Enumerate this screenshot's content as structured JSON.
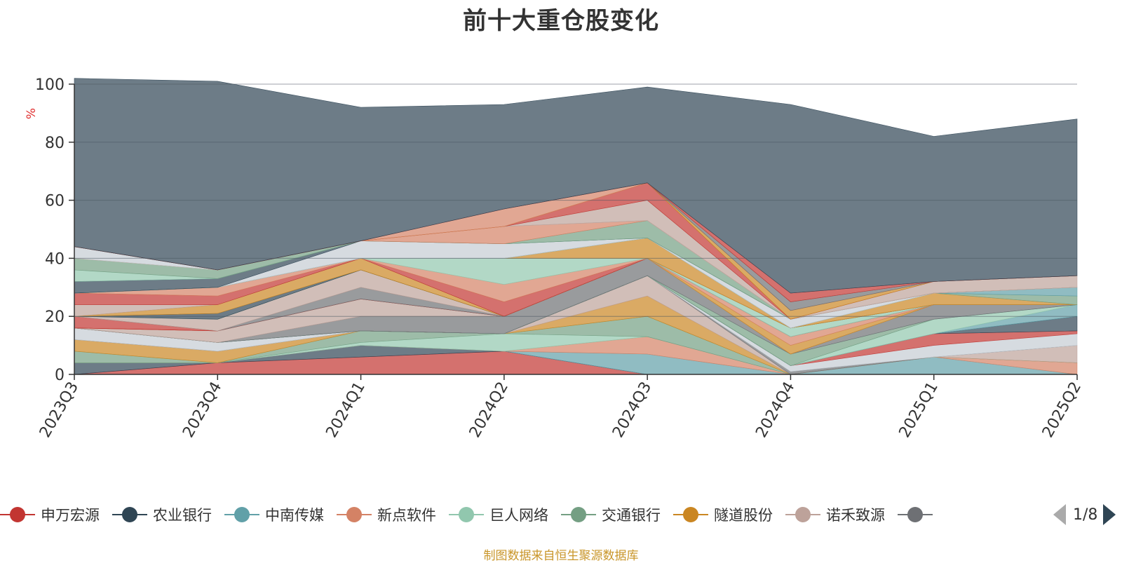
{
  "title": "前十大重仓股变化",
  "source_note": "制图数据来自恒生聚源数据库",
  "legend_page": "1/8",
  "chart_data": {
    "type": "area",
    "stacked": true,
    "title": "前十大重仓股变化",
    "ylabel": "%",
    "ylim": [
      0,
      100
    ],
    "yticks": [
      0,
      20,
      40,
      60,
      80,
      100
    ],
    "grid": true,
    "legend_position": "bottom",
    "x": [
      "2023Q3",
      "2023Q4",
      "2024Q1",
      "2024Q2",
      "2024Q3",
      "2024Q4",
      "2025Q1",
      "2025Q2"
    ],
    "series": [
      {
        "name": "申万宏源",
        "color": "#c23531",
        "values": [
          0,
          4,
          6,
          8,
          0,
          0,
          0,
          0
        ]
      },
      {
        "name": "农业银行",
        "color": "#2f4554",
        "values": [
          4,
          0,
          4,
          0,
          0,
          0,
          0,
          0
        ]
      },
      {
        "name": "中南传媒",
        "color": "#61a0a8",
        "values": [
          0,
          0,
          0,
          0,
          7,
          0,
          6,
          0
        ]
      },
      {
        "name": "新点软件",
        "color": "#d48265",
        "values": [
          0,
          0,
          0,
          0,
          6,
          0,
          0,
          4
        ]
      },
      {
        "name": "巨人网络",
        "color": "#91c7ae",
        "values": [
          0,
          0,
          1,
          6,
          0,
          0,
          0,
          0
        ]
      },
      {
        "name": "交通银行",
        "color": "#749f83",
        "values": [
          4,
          0,
          4,
          0,
          7,
          0,
          0,
          0
        ]
      },
      {
        "name": "隧道股份",
        "color": "#ca8622",
        "values": [
          4,
          4,
          0,
          0,
          7,
          0,
          0,
          0
        ]
      },
      {
        "name": "诺禾致源",
        "color": "#bda29a",
        "values": [
          0,
          0,
          0,
          0,
          7,
          0,
          0,
          6
        ]
      },
      {
        "name": "",
        "color": "#6e7074",
        "values": [
          0,
          0,
          0,
          0,
          0,
          1,
          0,
          0
        ]
      },
      {
        "name": "",
        "color": "#c4ccd3",
        "values": [
          4,
          3,
          0,
          0,
          0,
          2,
          4,
          4
        ]
      },
      {
        "name": "",
        "color": "#c23531",
        "values": [
          0,
          0,
          0,
          0,
          0,
          0,
          4,
          1
        ]
      },
      {
        "name": "",
        "color": "#2f4554",
        "values": [
          0,
          0,
          0,
          0,
          0,
          0,
          0,
          5
        ]
      },
      {
        "name": "",
        "color": "#61a0a8",
        "values": [
          0,
          0,
          0,
          0,
          0,
          0,
          0,
          4
        ]
      },
      {
        "name": "",
        "color": "#91c7ae",
        "values": [
          0,
          0,
          0,
          0,
          0,
          0,
          5,
          0
        ]
      },
      {
        "name": "",
        "color": "#749f83",
        "values": [
          0,
          0,
          0,
          0,
          0,
          4,
          0,
          0
        ]
      },
      {
        "name": "",
        "color": "#6e7074",
        "values": [
          0,
          0,
          5,
          6,
          6,
          0,
          5,
          0
        ]
      },
      {
        "name": "",
        "color": "#bda29a",
        "values": [
          0,
          4,
          6,
          0,
          0,
          0,
          0,
          0
        ]
      },
      {
        "name": "",
        "color": "#ca8622",
        "values": [
          0,
          0,
          0,
          0,
          0,
          3,
          0,
          0
        ]
      },
      {
        "name": "",
        "color": "#d48265",
        "values": [
          0,
          0,
          0,
          0,
          0,
          3,
          0,
          0
        ]
      },
      {
        "name": "",
        "color": "#c4ccd3",
        "values": [
          0,
          0,
          0,
          0,
          0,
          0,
          0,
          0
        ]
      },
      {
        "name": "",
        "color": "#c23531",
        "values": [
          0,
          0,
          0,
          0,
          0,
          0,
          0,
          0
        ]
      },
      {
        "name": "",
        "color": "#c23531",
        "values": [
          4,
          0,
          0,
          0,
          0,
          0,
          0,
          0
        ]
      },
      {
        "name": "",
        "color": "#6e7074",
        "values": [
          0,
          0,
          4,
          0,
          0,
          0,
          0,
          0
        ]
      },
      {
        "name": "",
        "color": "#bda29a",
        "values": [
          0,
          4,
          6,
          0,
          0,
          0,
          0,
          0
        ]
      },
      {
        "name": "",
        "color": "#91c7ae",
        "values": [
          0,
          0,
          0,
          0,
          0,
          3,
          0,
          0
        ]
      },
      {
        "name": "",
        "color": "#2f4554",
        "values": [
          0,
          2,
          0,
          0,
          0,
          0,
          0,
          0
        ]
      },
      {
        "name": "",
        "color": "#ca8622",
        "values": [
          0,
          3,
          4,
          0,
          0,
          0,
          0,
          0
        ]
      },
      {
        "name": "",
        "color": "#bda29a",
        "values": [
          4,
          0,
          0,
          0,
          0,
          0,
          0,
          0
        ]
      },
      {
        "name": "",
        "color": "#c23531",
        "values": [
          4,
          3,
          0,
          5,
          0,
          0,
          0,
          0
        ]
      },
      {
        "name": "",
        "color": "#d48265",
        "values": [
          0,
          3,
          0,
          6,
          0,
          0,
          0,
          0
        ]
      },
      {
        "name": "",
        "color": "#91c7ae",
        "values": [
          0,
          0,
          0,
          9,
          0,
          0,
          0,
          0
        ]
      },
      {
        "name": "",
        "color": "#ca8622",
        "values": [
          0,
          0,
          0,
          0,
          7,
          0,
          4,
          0
        ]
      },
      {
        "name": "",
        "color": "#749f83",
        "values": [
          0,
          0,
          0,
          0,
          0,
          0,
          0,
          3
        ]
      },
      {
        "name": "",
        "color": "#61a0a8",
        "values": [
          0,
          0,
          0,
          0,
          0,
          0,
          0,
          3
        ]
      },
      {
        "name": "",
        "color": "#c4ccd3",
        "values": [
          0,
          0,
          6,
          5,
          0,
          3,
          0,
          0
        ]
      },
      {
        "name": "",
        "color": "#2f4554",
        "values": [
          4,
          3,
          0,
          0,
          0,
          0,
          0,
          0
        ]
      },
      {
        "name": "",
        "color": "#91c7ae",
        "values": [
          4,
          0,
          0,
          0,
          0,
          0,
          0,
          0
        ]
      },
      {
        "name": "",
        "color": "#749f83",
        "values": [
          4,
          3,
          0,
          0,
          6,
          0,
          0,
          0
        ]
      },
      {
        "name": "",
        "color": "#d48265",
        "values": [
          0,
          0,
          0,
          6,
          0,
          0,
          0,
          0
        ]
      },
      {
        "name": "",
        "color": "#c4ccd3",
        "values": [
          4,
          0,
          0,
          0,
          0,
          0,
          0,
          0
        ]
      },
      {
        "name": "",
        "color": "#bda29a",
        "values": [
          0,
          0,
          0,
          0,
          7,
          0,
          4,
          4
        ]
      },
      {
        "name": "",
        "color": "#c23531",
        "values": [
          0,
          0,
          0,
          0,
          6,
          0,
          0,
          0
        ]
      },
      {
        "name": "",
        "color": "#ca8622",
        "values": [
          0,
          0,
          0,
          0,
          0,
          3,
          0,
          0
        ]
      },
      {
        "name": "",
        "color": "#d48265",
        "values": [
          0,
          0,
          0,
          6,
          0,
          0,
          0,
          0
        ]
      },
      {
        "name": "",
        "color": "#6e7074",
        "values": [
          0,
          0,
          0,
          0,
          0,
          3,
          0,
          0
        ]
      },
      {
        "name": "",
        "color": "#c23531",
        "values": [
          0,
          0,
          0,
          0,
          0,
          3,
          0,
          0
        ]
      },
      {
        "name": "",
        "color": "#2f4554",
        "values": [
          58,
          65,
          46,
          36,
          33,
          65,
          50,
          54
        ]
      }
    ]
  }
}
